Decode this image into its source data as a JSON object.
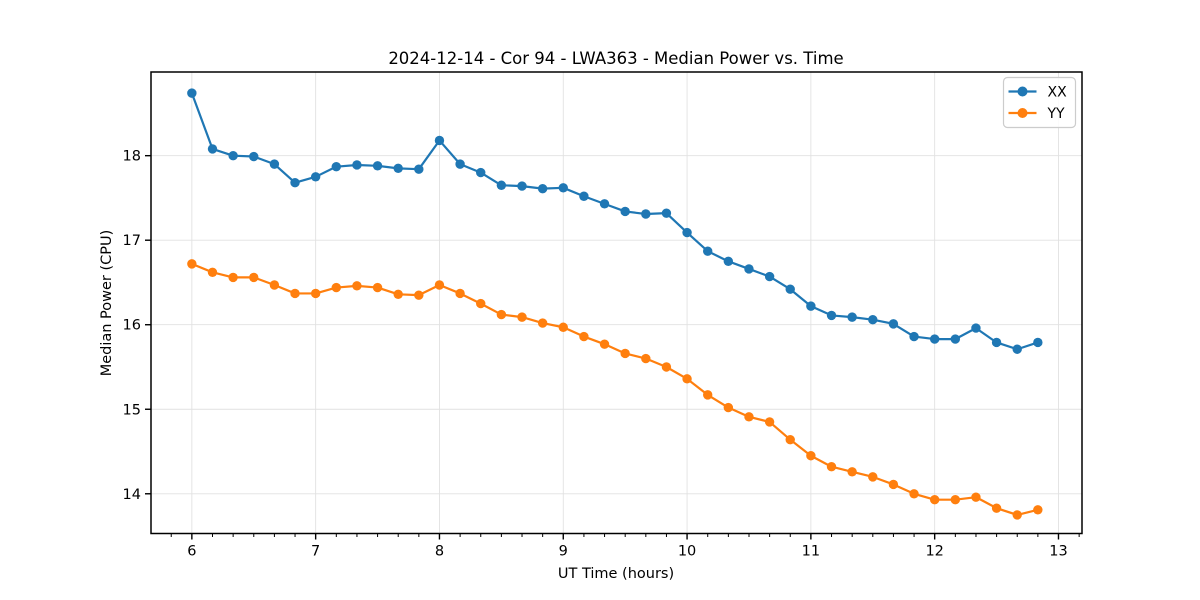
{
  "chart_data": {
    "type": "line",
    "title": "2024-12-14 - Cor 94 - LWA363 - Median Power vs. Time",
    "xlabel": "UT Time (hours)",
    "ylabel": "Median Power (CPU)",
    "x": [
      6.0,
      6.1667,
      6.3333,
      6.5,
      6.6667,
      6.8333,
      7.0,
      7.1667,
      7.3333,
      7.5,
      7.6667,
      7.8333,
      8.0,
      8.1667,
      8.3333,
      8.5,
      8.6667,
      8.8333,
      9.0,
      9.1667,
      9.3333,
      9.5,
      9.6667,
      9.8333,
      10.0,
      10.1667,
      10.3333,
      10.5,
      10.6667,
      10.8333,
      11.0,
      11.1667,
      11.3333,
      11.5,
      11.6667,
      11.8333,
      12.0,
      12.1667,
      12.3333,
      12.5,
      12.6667,
      12.8333
    ],
    "series": [
      {
        "name": "XX",
        "color": "#1f77b4",
        "values": [
          18.74,
          18.08,
          18.0,
          17.99,
          17.9,
          17.68,
          17.75,
          17.87,
          17.89,
          17.88,
          17.85,
          17.84,
          18.18,
          17.9,
          17.8,
          17.65,
          17.64,
          17.61,
          17.62,
          17.52,
          17.43,
          17.34,
          17.31,
          17.32,
          17.09,
          16.87,
          16.75,
          16.66,
          16.57,
          16.42,
          16.22,
          16.11,
          16.09,
          16.06,
          16.01,
          15.86,
          15.83,
          15.83,
          15.96,
          15.79,
          15.71,
          15.79
        ]
      },
      {
        "name": "YY",
        "color": "#ff7f0e",
        "values": [
          16.72,
          16.62,
          16.56,
          16.56,
          16.47,
          16.37,
          16.37,
          16.44,
          16.46,
          16.44,
          16.36,
          16.35,
          16.47,
          16.37,
          16.25,
          16.12,
          16.09,
          16.02,
          15.97,
          15.86,
          15.77,
          15.66,
          15.6,
          15.5,
          15.36,
          15.17,
          15.02,
          14.91,
          14.85,
          14.64,
          14.45,
          14.32,
          14.26,
          14.2,
          14.11,
          14.0,
          13.93,
          13.93,
          13.96,
          13.83,
          13.75,
          13.81
        ]
      }
    ],
    "xticks": [
      6,
      7,
      8,
      9,
      10,
      11,
      12,
      13
    ],
    "yticks": [
      14,
      15,
      16,
      17,
      18
    ],
    "xlim": [
      5.67,
      13.19
    ],
    "ylim": [
      13.53,
      18.99
    ],
    "minor_xtick_step": 0.16667,
    "grid": true,
    "legend_position": "upper right",
    "colors": {
      "grid": "#e1e1e1",
      "spine": "#000000",
      "legend_border": "#cccccc",
      "background": "#ffffff"
    }
  }
}
